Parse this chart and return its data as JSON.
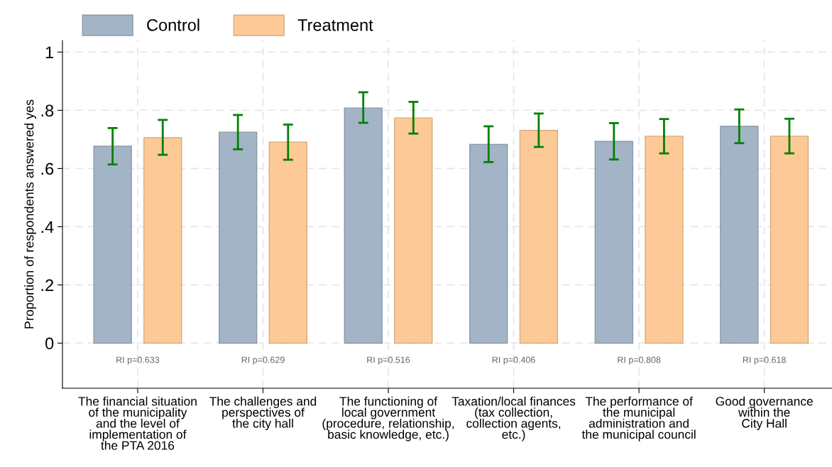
{
  "chart_data": {
    "type": "bar",
    "ylabel": "Proportion of respondents answered yes",
    "categories": [
      "The financial situation\nof the municipality\nand the level of\nimplementation of\nthe PTA 2016",
      "The challenges and\nperspectives of\nthe city hall",
      "The functioning of\nlocal government\n(procedure, relationship,\nbasic knowledge, etc.)",
      "Taxation/local finances\n(tax collection,\ncollection agents,\netc.)",
      "The performance of\nthe municipal\nadministration and\nthe municipal council",
      "Good governance\nwithin the\nCity Hall"
    ],
    "series": [
      {
        "name": "Control",
        "color": "#a3b4c6",
        "values": [
          0.677,
          0.725,
          0.808,
          0.683,
          0.693,
          0.745
        ],
        "errors": [
          [
            0.614,
            0.739
          ],
          [
            0.666,
            0.784
          ],
          [
            0.757,
            0.862
          ],
          [
            0.622,
            0.745
          ],
          [
            0.631,
            0.756
          ],
          [
            0.687,
            0.803
          ]
        ]
      },
      {
        "name": "Treatment",
        "color": "#fdc997",
        "values": [
          0.706,
          0.691,
          0.774,
          0.731,
          0.711,
          0.711
        ],
        "errors": [
          [
            0.647,
            0.767
          ],
          [
            0.63,
            0.751
          ],
          [
            0.72,
            0.829
          ],
          [
            0.674,
            0.789
          ],
          [
            0.652,
            0.77
          ],
          [
            0.652,
            0.771
          ]
        ]
      }
    ],
    "ylim": [
      -0.155,
      1.04
    ],
    "yticks": [
      0,
      {
        "value": 0.2,
        "label": ".2"
      },
      {
        "value": 0.4,
        "label": ".4"
      },
      {
        "value": 0.6,
        "label": ".6"
      },
      {
        "value": 0.8,
        "label": ".8"
      },
      1
    ],
    "annotations": [
      "RI p=0.633",
      "RI p=0.629",
      "RI p=0.516",
      "RI p=0.406",
      "RI p=0.808",
      "RI p=0.618"
    ],
    "grid": true,
    "legend": "top left"
  }
}
